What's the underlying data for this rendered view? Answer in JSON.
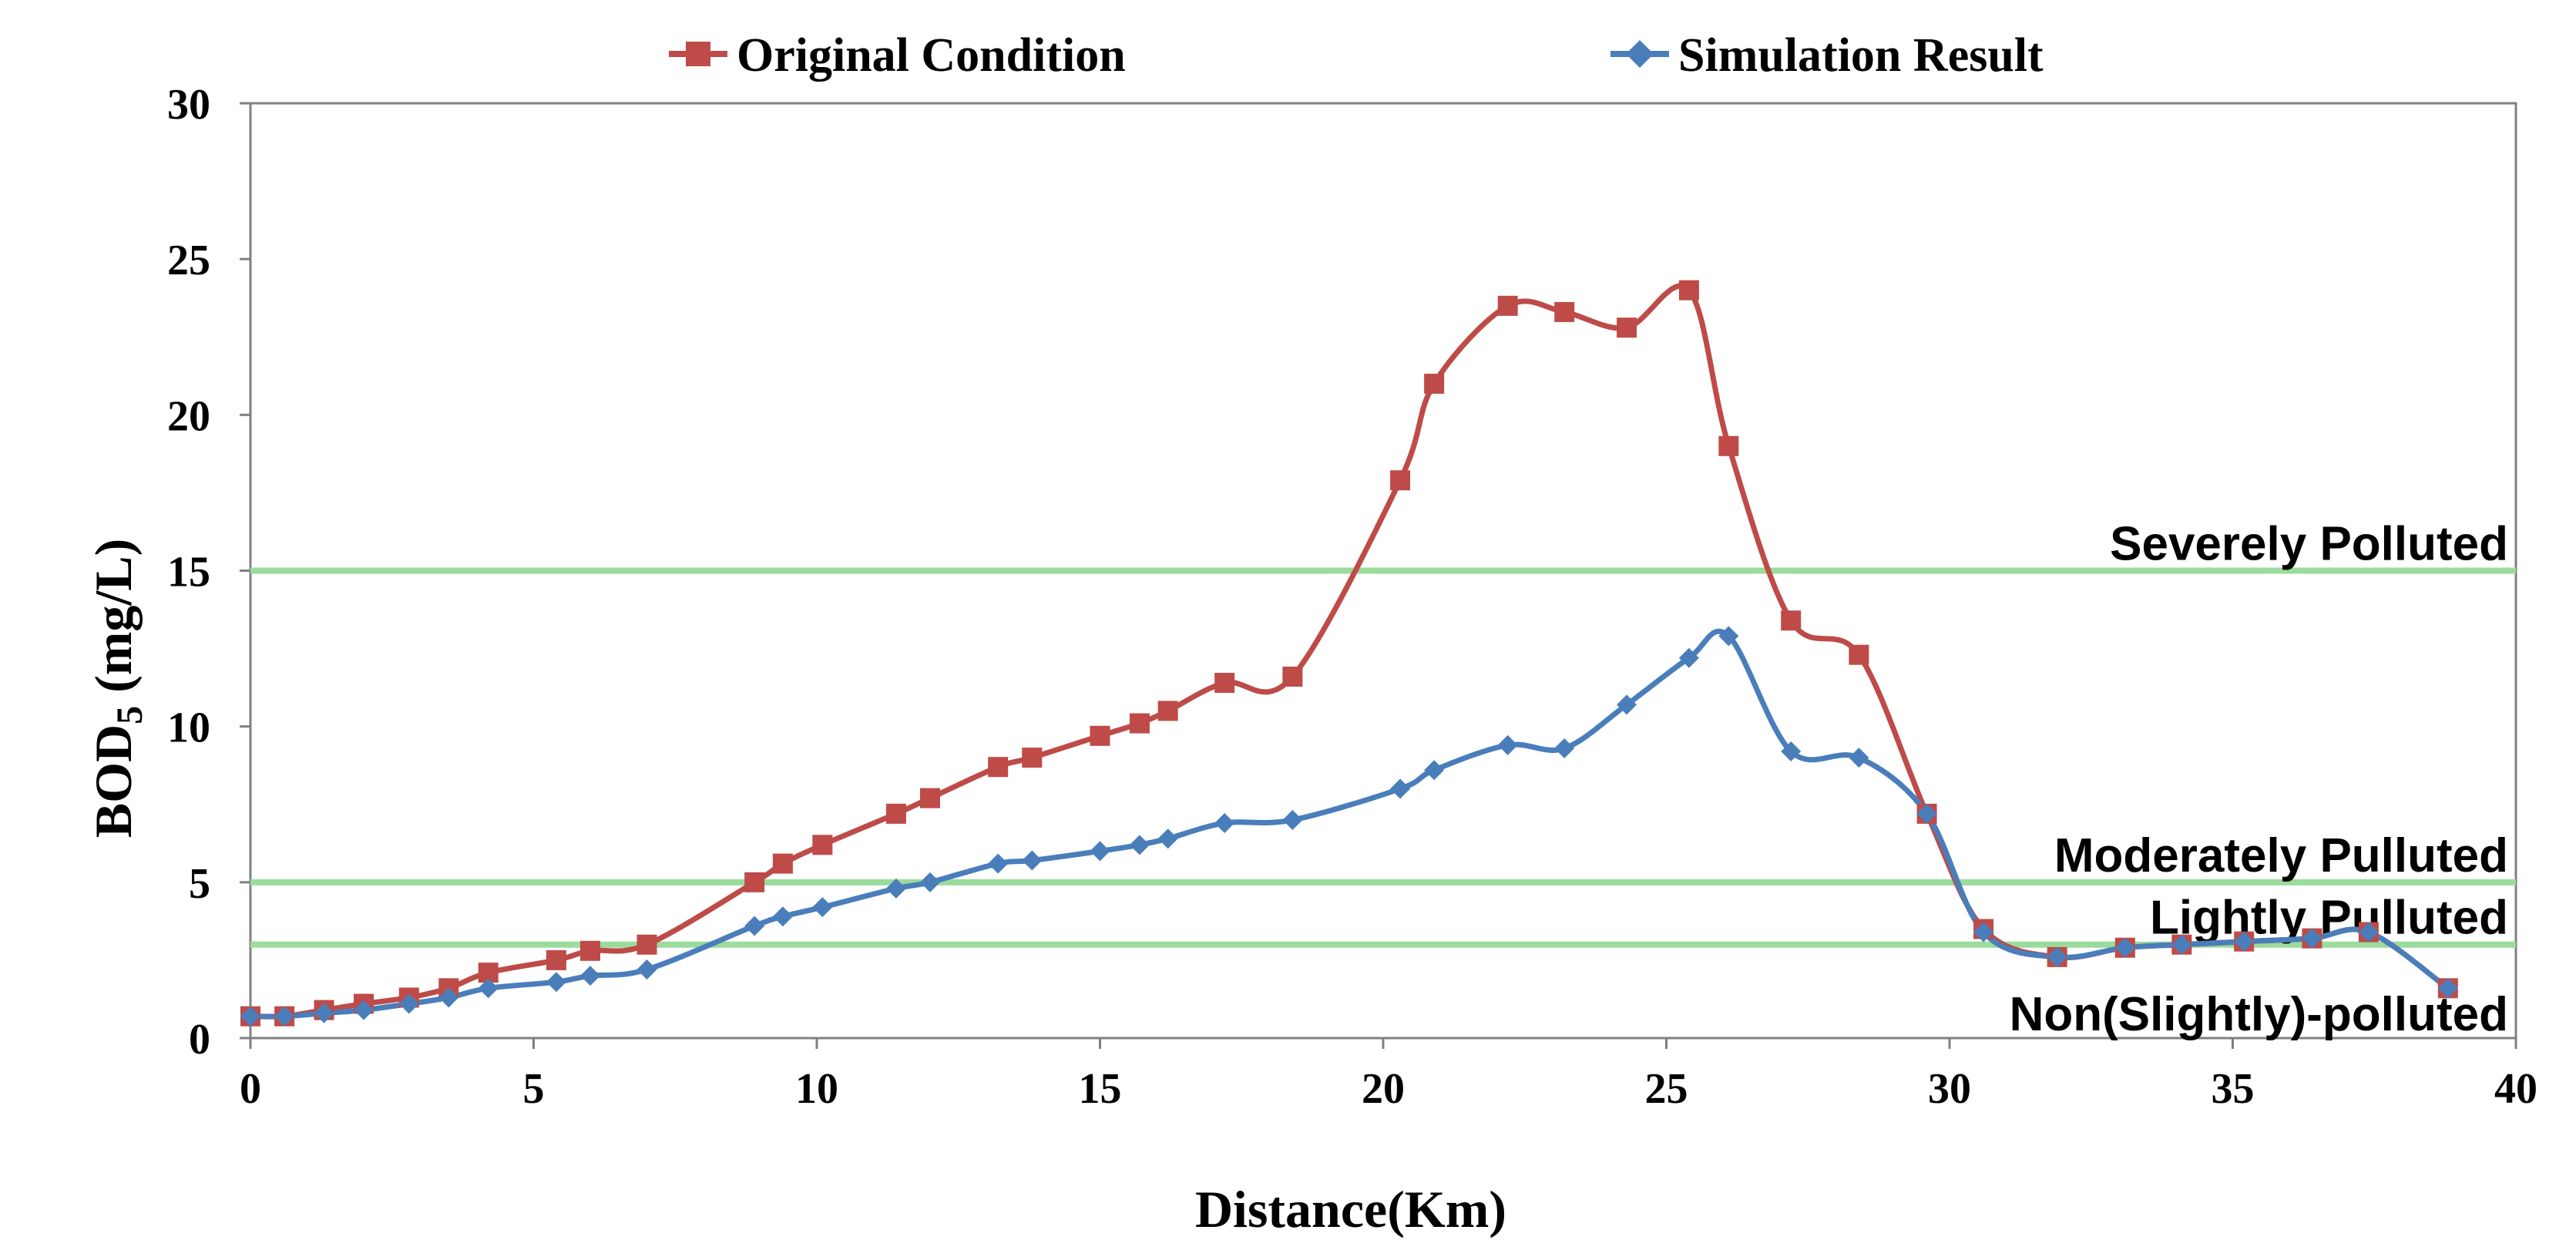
{
  "chart_data": {
    "type": "line",
    "title": "",
    "xlabel": "Distance(Km)",
    "ylabel_main": "BOD",
    "ylabel_sub": "5",
    "ylabel_unit": " (mg/L)",
    "xlim": [
      0,
      40
    ],
    "ylim": [
      0,
      30
    ],
    "xticks": [
      0,
      5,
      10,
      15,
      20,
      25,
      30,
      35,
      40
    ],
    "yticks": [
      0,
      5,
      10,
      15,
      20,
      25,
      30
    ],
    "legend_position": "top",
    "series": [
      {
        "name": "Original Condition",
        "color": "#BE4B48",
        "marker": "square",
        "x": [
          0,
          0.6,
          1.3,
          2.0,
          2.8,
          3.5,
          4.2,
          5.4,
          6.0,
          7.0,
          8.9,
          9.4,
          10.1,
          11.4,
          12.0,
          13.2,
          13.8,
          15.0,
          15.7,
          16.2,
          17.2,
          18.4,
          20.3,
          20.9,
          22.2,
          23.2,
          24.3,
          25.4,
          26.1,
          27.2,
          28.4,
          29.6,
          30.6,
          31.9,
          33.1,
          34.1,
          35.2,
          36.4,
          37.4,
          38.8
        ],
        "y": [
          0.7,
          0.7,
          0.9,
          1.1,
          1.3,
          1.6,
          2.1,
          2.5,
          2.8,
          3.0,
          5.0,
          5.6,
          6.2,
          7.2,
          7.7,
          8.7,
          9.0,
          9.7,
          10.1,
          10.5,
          11.4,
          11.6,
          17.9,
          21.0,
          23.5,
          23.3,
          22.8,
          24.0,
          19.0,
          13.4,
          12.3,
          7.2,
          3.5,
          2.6,
          2.9,
          3.0,
          3.1,
          3.2,
          3.4,
          1.6
        ]
      },
      {
        "name": "Simulation Result",
        "color": "#4A7EBB",
        "marker": "diamond",
        "x": [
          0,
          0.6,
          1.3,
          2.0,
          2.8,
          3.5,
          4.2,
          5.4,
          6.0,
          7.0,
          8.9,
          9.4,
          10.1,
          11.4,
          12.0,
          13.2,
          13.8,
          15.0,
          15.7,
          16.2,
          17.2,
          18.4,
          20.3,
          20.9,
          22.2,
          23.2,
          24.3,
          25.4,
          26.1,
          27.2,
          28.4,
          29.6,
          30.6,
          31.9,
          33.1,
          34.1,
          35.2,
          36.4,
          37.4,
          38.8
        ],
        "y": [
          0.7,
          0.7,
          0.8,
          0.9,
          1.1,
          1.3,
          1.6,
          1.8,
          2.0,
          2.2,
          3.6,
          3.9,
          4.2,
          4.8,
          5.0,
          5.6,
          5.7,
          6.0,
          6.2,
          6.4,
          6.9,
          7.0,
          8.0,
          8.6,
          9.4,
          9.3,
          10.7,
          12.2,
          12.9,
          9.2,
          9.0,
          7.2,
          3.4,
          2.6,
          2.9,
          3.0,
          3.1,
          3.2,
          3.4,
          1.6
        ]
      }
    ],
    "reference_lines": [
      {
        "y": 15,
        "label": "Severely Polluted"
      },
      {
        "y": 5,
        "label": "Moderately Pulluted"
      },
      {
        "y": 3,
        "label": "Lightly Pulluted"
      },
      {
        "y": 0,
        "label": "Non(Slightly)-polluted"
      }
    ],
    "reference_color": "#9BDB9B",
    "axis_color": "#808080"
  }
}
